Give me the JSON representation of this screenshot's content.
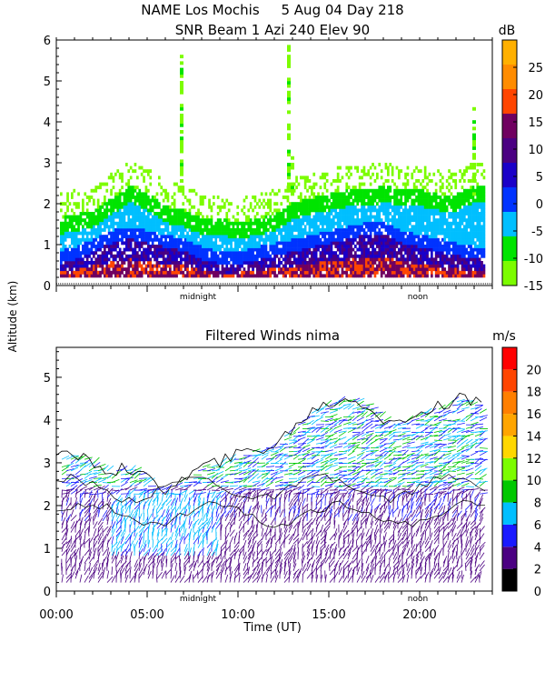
{
  "chart_data": [
    {
      "type": "heatmap",
      "title": "NAME Los Mochis     5 Aug 04 Day 218",
      "subtitle": "SNR Beam 1 Azi 240 Elev 90",
      "ylabel": "Altitude (km)",
      "ylim": [
        0,
        6
      ],
      "yticks": [
        "0",
        "1",
        "2",
        "3",
        "4",
        "5",
        "6"
      ],
      "xlim": [
        0,
        24
      ],
      "time_markers": [
        "midnight",
        "noon"
      ],
      "colorbar": {
        "unit": "dB",
        "ticks": [
          "-15",
          "-10",
          "-5",
          "0",
          "5",
          "10",
          "15",
          "20",
          "25"
        ],
        "range": [
          -15,
          30
        ],
        "colors": [
          "#7cfc00",
          "#00e400",
          "#00bfff",
          "#0033ff",
          "#1a00c8",
          "#4b0082",
          "#700060",
          "#ff4500",
          "#ff8c00",
          "#ffb000"
        ]
      },
      "features": {
        "boundary_layer_top_km": [
          1.6,
          1.7,
          1.8,
          2.1,
          2.4,
          2.2,
          1.9,
          1.8,
          1.6,
          1.6,
          1.5,
          1.6,
          1.7,
          2.0,
          2.1,
          2.2,
          2.3,
          2.3,
          2.4,
          2.3,
          2.3,
          2.2,
          2.2,
          2.4
        ],
        "strong_echo_top_km": [
          0.5,
          0.6,
          0.8,
          1.0,
          1.1,
          1.0,
          0.9,
          0.8,
          0.6,
          0.5,
          0.5,
          0.6,
          0.7,
          0.8,
          0.9,
          1.0,
          1.1,
          1.2,
          1.2,
          1.0,
          0.9,
          0.8,
          0.7,
          0.6
        ]
      }
    },
    {
      "type": "scatter",
      "title": "Filtered Winds nima",
      "xlabel": "Time (UT)",
      "xticks": [
        "00:00",
        "05:00",
        "10:00",
        "15:00",
        "20:00"
      ],
      "xlim": [
        0,
        24
      ],
      "ylim": [
        0,
        5.7
      ],
      "yticks": [
        "0",
        "1",
        "2",
        "3",
        "4",
        "5"
      ],
      "time_markers": [
        "midnight",
        "noon"
      ],
      "colorbar": {
        "unit": "m/s",
        "ticks": [
          "0",
          "2",
          "4",
          "6",
          "8",
          "10",
          "12",
          "14",
          "16",
          "18",
          "20"
        ],
        "range": [
          0,
          22
        ],
        "colors": [
          "#000000",
          "#4b0082",
          "#1a1aff",
          "#00bfff",
          "#00c800",
          "#7cfc00",
          "#ffd700",
          "#ffa500",
          "#ff7f00",
          "#ff4500",
          "#ff0000"
        ]
      },
      "features": {
        "wind_top_km": [
          3.1,
          3.2,
          3.0,
          2.8,
          2.9,
          2.6,
          2.4,
          2.6,
          2.9,
          3.0,
          3.2,
          3.3,
          3.4,
          3.8,
          4.2,
          4.4,
          4.5,
          4.4,
          4.0,
          3.9,
          4.2,
          4.3,
          4.5,
          4.4
        ]
      }
    }
  ]
}
